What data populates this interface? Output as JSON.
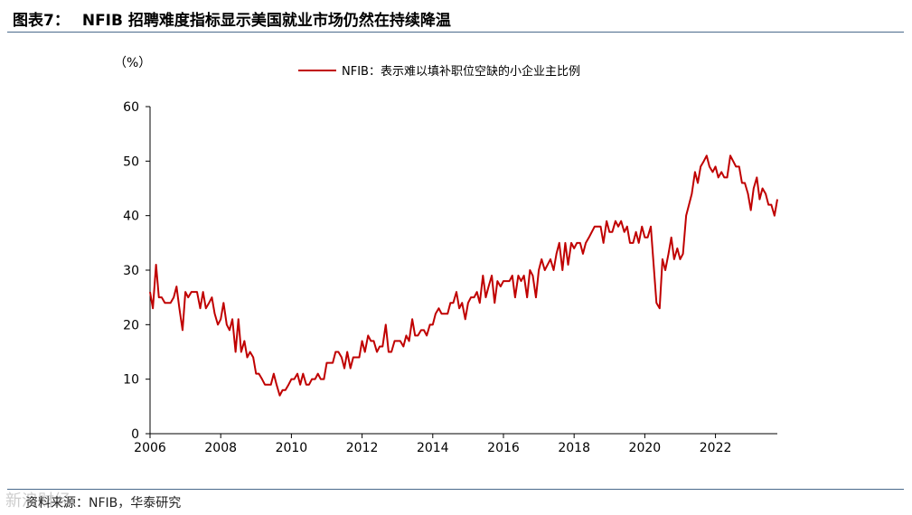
{
  "figure": {
    "number": "图表7：",
    "title": "NFIB 招聘难度指标显示美国就业市场仍然在持续降温",
    "source": "资料来源：NFIB，华泰研究",
    "watermark": "新浪财经"
  },
  "colors": {
    "series": "#c00000",
    "rule": "#4a6a8c",
    "axis": "#000000"
  },
  "chart_data": {
    "type": "line",
    "unit_label": "（%）",
    "ylim": [
      0,
      60
    ],
    "yticks": [
      0,
      10,
      20,
      30,
      40,
      50,
      60
    ],
    "xlim": [
      2006.0,
      2023.75
    ],
    "xticks": [
      2006,
      2008,
      2010,
      2012,
      2014,
      2016,
      2018,
      2020,
      2022
    ],
    "grid": false,
    "legend_position": "top-right",
    "series": [
      {
        "name": "NFIB：表示难以填补职位空缺的小企业主比例",
        "color": "#c00000",
        "points": [
          [
            2006.0,
            26
          ],
          [
            2006.08,
            23
          ],
          [
            2006.17,
            31
          ],
          [
            2006.25,
            25
          ],
          [
            2006.33,
            25
          ],
          [
            2006.42,
            24
          ],
          [
            2006.5,
            24
          ],
          [
            2006.58,
            24
          ],
          [
            2006.67,
            25
          ],
          [
            2006.75,
            27
          ],
          [
            2006.83,
            23
          ],
          [
            2006.92,
            19
          ],
          [
            2007.0,
            26
          ],
          [
            2007.08,
            25
          ],
          [
            2007.17,
            26
          ],
          [
            2007.25,
            26
          ],
          [
            2007.33,
            26
          ],
          [
            2007.42,
            23
          ],
          [
            2007.5,
            26
          ],
          [
            2007.58,
            23
          ],
          [
            2007.67,
            24
          ],
          [
            2007.75,
            25
          ],
          [
            2007.83,
            22
          ],
          [
            2007.92,
            20
          ],
          [
            2008.0,
            21
          ],
          [
            2008.08,
            24
          ],
          [
            2008.17,
            20
          ],
          [
            2008.25,
            19
          ],
          [
            2008.33,
            21
          ],
          [
            2008.42,
            15
          ],
          [
            2008.5,
            21
          ],
          [
            2008.58,
            15
          ],
          [
            2008.67,
            17
          ],
          [
            2008.75,
            14
          ],
          [
            2008.83,
            15
          ],
          [
            2008.92,
            14
          ],
          [
            2009.0,
            11
          ],
          [
            2009.08,
            11
          ],
          [
            2009.17,
            10
          ],
          [
            2009.25,
            9
          ],
          [
            2009.33,
            9
          ],
          [
            2009.42,
            9
          ],
          [
            2009.5,
            11
          ],
          [
            2009.58,
            9
          ],
          [
            2009.67,
            7
          ],
          [
            2009.75,
            8
          ],
          [
            2009.83,
            8
          ],
          [
            2009.92,
            9
          ],
          [
            2010.0,
            10
          ],
          [
            2010.08,
            10
          ],
          [
            2010.17,
            11
          ],
          [
            2010.25,
            9
          ],
          [
            2010.33,
            11
          ],
          [
            2010.42,
            9
          ],
          [
            2010.5,
            9
          ],
          [
            2010.58,
            10
          ],
          [
            2010.67,
            10
          ],
          [
            2010.75,
            11
          ],
          [
            2010.83,
            10
          ],
          [
            2010.92,
            10
          ],
          [
            2011.0,
            13
          ],
          [
            2011.08,
            13
          ],
          [
            2011.17,
            13
          ],
          [
            2011.25,
            15
          ],
          [
            2011.33,
            15
          ],
          [
            2011.42,
            14
          ],
          [
            2011.5,
            12
          ],
          [
            2011.58,
            15
          ],
          [
            2011.67,
            12
          ],
          [
            2011.75,
            14
          ],
          [
            2011.83,
            14
          ],
          [
            2011.92,
            14
          ],
          [
            2012.0,
            17
          ],
          [
            2012.08,
            15
          ],
          [
            2012.17,
            18
          ],
          [
            2012.25,
            17
          ],
          [
            2012.33,
            17
          ],
          [
            2012.42,
            15
          ],
          [
            2012.5,
            16
          ],
          [
            2012.58,
            16
          ],
          [
            2012.67,
            20
          ],
          [
            2012.75,
            15
          ],
          [
            2012.83,
            15
          ],
          [
            2012.92,
            17
          ],
          [
            2013.0,
            17
          ],
          [
            2013.08,
            17
          ],
          [
            2013.17,
            16
          ],
          [
            2013.25,
            18
          ],
          [
            2013.33,
            17
          ],
          [
            2013.42,
            21
          ],
          [
            2013.5,
            18
          ],
          [
            2013.58,
            18
          ],
          [
            2013.67,
            19
          ],
          [
            2013.75,
            19
          ],
          [
            2013.83,
            18
          ],
          [
            2013.92,
            20
          ],
          [
            2014.0,
            20
          ],
          [
            2014.08,
            22
          ],
          [
            2014.17,
            23
          ],
          [
            2014.25,
            22
          ],
          [
            2014.33,
            22
          ],
          [
            2014.42,
            22
          ],
          [
            2014.5,
            24
          ],
          [
            2014.58,
            24
          ],
          [
            2014.67,
            26
          ],
          [
            2014.75,
            23
          ],
          [
            2014.83,
            24
          ],
          [
            2014.92,
            21
          ],
          [
            2015.0,
            24
          ],
          [
            2015.08,
            25
          ],
          [
            2015.17,
            25
          ],
          [
            2015.25,
            26
          ],
          [
            2015.33,
            24
          ],
          [
            2015.42,
            29
          ],
          [
            2015.5,
            25
          ],
          [
            2015.58,
            27
          ],
          [
            2015.67,
            29
          ],
          [
            2015.75,
            24
          ],
          [
            2015.83,
            28
          ],
          [
            2015.92,
            27
          ],
          [
            2016.0,
            28
          ],
          [
            2016.08,
            28
          ],
          [
            2016.17,
            28
          ],
          [
            2016.25,
            29
          ],
          [
            2016.33,
            25
          ],
          [
            2016.42,
            29
          ],
          [
            2016.5,
            28
          ],
          [
            2016.58,
            29
          ],
          [
            2016.67,
            25
          ],
          [
            2016.75,
            30
          ],
          [
            2016.83,
            29
          ],
          [
            2016.92,
            25
          ],
          [
            2017.0,
            30
          ],
          [
            2017.08,
            32
          ],
          [
            2017.17,
            30
          ],
          [
            2017.25,
            31
          ],
          [
            2017.33,
            32
          ],
          [
            2017.42,
            30
          ],
          [
            2017.5,
            33
          ],
          [
            2017.58,
            35
          ],
          [
            2017.67,
            30
          ],
          [
            2017.75,
            35
          ],
          [
            2017.83,
            31
          ],
          [
            2017.92,
            35
          ],
          [
            2018.0,
            34
          ],
          [
            2018.08,
            35
          ],
          [
            2018.17,
            35
          ],
          [
            2018.25,
            33
          ],
          [
            2018.33,
            35
          ],
          [
            2018.42,
            36
          ],
          [
            2018.5,
            37
          ],
          [
            2018.58,
            38
          ],
          [
            2018.67,
            38
          ],
          [
            2018.75,
            38
          ],
          [
            2018.83,
            35
          ],
          [
            2018.92,
            39
          ],
          [
            2019.0,
            37
          ],
          [
            2019.08,
            37
          ],
          [
            2019.17,
            39
          ],
          [
            2019.25,
            38
          ],
          [
            2019.33,
            39
          ],
          [
            2019.42,
            37
          ],
          [
            2019.5,
            38
          ],
          [
            2019.58,
            35
          ],
          [
            2019.67,
            35
          ],
          [
            2019.75,
            37
          ],
          [
            2019.83,
            35
          ],
          [
            2019.92,
            38
          ],
          [
            2020.0,
            36
          ],
          [
            2020.08,
            36
          ],
          [
            2020.17,
            38
          ],
          [
            2020.25,
            31
          ],
          [
            2020.33,
            24
          ],
          [
            2020.42,
            23
          ],
          [
            2020.5,
            32
          ],
          [
            2020.58,
            30
          ],
          [
            2020.67,
            33
          ],
          [
            2020.75,
            36
          ],
          [
            2020.83,
            32
          ],
          [
            2020.92,
            34
          ],
          [
            2021.0,
            32
          ],
          [
            2021.08,
            33
          ],
          [
            2021.17,
            40
          ],
          [
            2021.25,
            42
          ],
          [
            2021.33,
            44
          ],
          [
            2021.42,
            48
          ],
          [
            2021.5,
            46
          ],
          [
            2021.58,
            49
          ],
          [
            2021.67,
            50
          ],
          [
            2021.75,
            51
          ],
          [
            2021.83,
            49
          ],
          [
            2021.92,
            48
          ],
          [
            2022.0,
            49
          ],
          [
            2022.08,
            47
          ],
          [
            2022.17,
            48
          ],
          [
            2022.25,
            47
          ],
          [
            2022.33,
            47
          ],
          [
            2022.42,
            51
          ],
          [
            2022.5,
            50
          ],
          [
            2022.58,
            49
          ],
          [
            2022.67,
            49
          ],
          [
            2022.75,
            46
          ],
          [
            2022.83,
            46
          ],
          [
            2022.92,
            44
          ],
          [
            2023.0,
            41
          ],
          [
            2023.08,
            45
          ],
          [
            2023.17,
            47
          ],
          [
            2023.25,
            43
          ],
          [
            2023.33,
            45
          ],
          [
            2023.42,
            44
          ],
          [
            2023.5,
            42
          ],
          [
            2023.58,
            42
          ],
          [
            2023.67,
            40
          ],
          [
            2023.75,
            43
          ]
        ]
      }
    ]
  }
}
